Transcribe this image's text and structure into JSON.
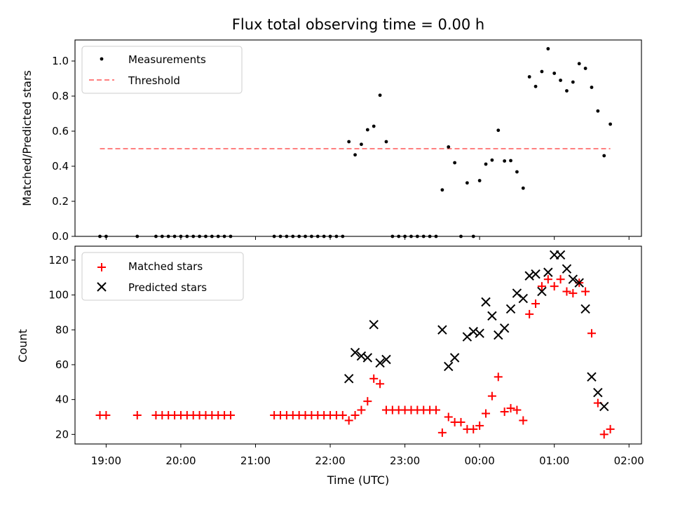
{
  "chart_data": [
    {
      "type": "scatter",
      "title": "Flux total observing time = 0.00 h",
      "xlabel": "",
      "ylabel": "Matched/Predicted stars",
      "xlim": [
        "18:35",
        "02:10"
      ],
      "ylim": [
        0,
        1.12
      ],
      "yticks": [
        "0.0",
        "0.2",
        "0.4",
        "0.6",
        "0.8",
        "1.0"
      ],
      "legend": {
        "position": "top-left",
        "entries": [
          "Measurements",
          "Threshold"
        ]
      },
      "threshold": {
        "name": "Threshold",
        "value": 0.5,
        "x_start": "18:55",
        "x_end": "01:45",
        "color": "#ff8080"
      },
      "series": [
        {
          "name": "Measurements",
          "marker": "dot",
          "color": "#000000",
          "points": [
            [
              "18:55",
              0
            ],
            [
              "19:00",
              0
            ],
            [
              "19:25",
              0
            ],
            [
              "19:40",
              0
            ],
            [
              "19:45",
              0
            ],
            [
              "19:50",
              0
            ],
            [
              "19:55",
              0
            ],
            [
              "20:00",
              0
            ],
            [
              "20:05",
              0
            ],
            [
              "20:10",
              0
            ],
            [
              "20:15",
              0
            ],
            [
              "20:20",
              0
            ],
            [
              "20:25",
              0
            ],
            [
              "20:30",
              0
            ],
            [
              "20:35",
              0
            ],
            [
              "20:40",
              0
            ],
            [
              "21:15",
              0
            ],
            [
              "21:20",
              0
            ],
            [
              "21:25",
              0
            ],
            [
              "21:30",
              0
            ],
            [
              "21:35",
              0
            ],
            [
              "21:40",
              0
            ],
            [
              "21:45",
              0
            ],
            [
              "21:50",
              0
            ],
            [
              "21:55",
              0
            ],
            [
              "22:00",
              0
            ],
            [
              "22:05",
              0
            ],
            [
              "22:10",
              0
            ],
            [
              "22:15",
              0.54
            ],
            [
              "22:20",
              0.465
            ],
            [
              "22:25",
              0.525
            ],
            [
              "22:30",
              0.608
            ],
            [
              "22:35",
              0.628
            ],
            [
              "22:40",
              0.805
            ],
            [
              "22:45",
              0.54
            ],
            [
              "22:50",
              0
            ],
            [
              "22:55",
              0
            ],
            [
              "23:00",
              0
            ],
            [
              "23:05",
              0
            ],
            [
              "23:10",
              0
            ],
            [
              "23:15",
              0
            ],
            [
              "23:20",
              0
            ],
            [
              "23:25",
              0
            ],
            [
              "23:30",
              0.265
            ],
            [
              "23:35",
              0.51
            ],
            [
              "23:40",
              0.42
            ],
            [
              "23:45",
              0
            ],
            [
              "23:50",
              0.305
            ],
            [
              "23:55",
              0
            ],
            [
              "00:00",
              0.318
            ],
            [
              "00:05",
              0.412
            ],
            [
              "00:10",
              0.435
            ],
            [
              "00:15",
              0.605
            ],
            [
              "00:20",
              0.43
            ],
            [
              "00:25",
              0.432
            ],
            [
              "00:30",
              0.368
            ],
            [
              "00:35",
              0.275
            ],
            [
              "00:40",
              0.91
            ],
            [
              "00:45",
              0.855
            ],
            [
              "00:50",
              0.94
            ],
            [
              "00:55",
              1.07
            ],
            [
              "01:00",
              0.93
            ],
            [
              "01:05",
              0.89
            ],
            [
              "01:10",
              0.83
            ],
            [
              "01:15",
              0.88
            ],
            [
              "01:20",
              0.985
            ],
            [
              "01:25",
              0.958
            ],
            [
              "01:30",
              0.85
            ],
            [
              "01:35",
              0.715
            ],
            [
              "01:40",
              0.46
            ],
            [
              "01:45",
              0.64
            ]
          ]
        }
      ]
    },
    {
      "type": "scatter",
      "title": "",
      "xlabel": "Time (UTC)",
      "ylabel": "Count",
      "xlim": [
        "18:35",
        "02:10"
      ],
      "ylim": [
        14.5,
        128
      ],
      "xticks": [
        "19:00",
        "20:00",
        "21:00",
        "22:00",
        "23:00",
        "00:00",
        "01:00",
        "02:00"
      ],
      "yticks": [
        "20",
        "40",
        "60",
        "80",
        "100",
        "120"
      ],
      "legend": {
        "position": "top-left",
        "entries": [
          "Matched stars",
          "Predicted stars"
        ]
      },
      "series": [
        {
          "name": "Matched stars",
          "marker": "plus",
          "color": "#ff0000",
          "points": [
            [
              "18:55",
              31
            ],
            [
              "19:00",
              31
            ],
            [
              "19:25",
              31
            ],
            [
              "19:40",
              31
            ],
            [
              "19:45",
              31
            ],
            [
              "19:50",
              31
            ],
            [
              "19:55",
              31
            ],
            [
              "20:00",
              31
            ],
            [
              "20:05",
              31
            ],
            [
              "20:10",
              31
            ],
            [
              "20:15",
              31
            ],
            [
              "20:20",
              31
            ],
            [
              "20:25",
              31
            ],
            [
              "20:30",
              31
            ],
            [
              "20:35",
              31
            ],
            [
              "20:40",
              31
            ],
            [
              "21:15",
              31
            ],
            [
              "21:20",
              31
            ],
            [
              "21:25",
              31
            ],
            [
              "21:30",
              31
            ],
            [
              "21:35",
              31
            ],
            [
              "21:40",
              31
            ],
            [
              "21:45",
              31
            ],
            [
              "21:50",
              31
            ],
            [
              "21:55",
              31
            ],
            [
              "22:00",
              31
            ],
            [
              "22:05",
              31
            ],
            [
              "22:10",
              31
            ],
            [
              "22:15",
              28
            ],
            [
              "22:20",
              31
            ],
            [
              "22:25",
              34
            ],
            [
              "22:30",
              39
            ],
            [
              "22:35",
              52
            ],
            [
              "22:40",
              49
            ],
            [
              "22:45",
              34
            ],
            [
              "22:50",
              34
            ],
            [
              "22:55",
              34
            ],
            [
              "23:00",
              34
            ],
            [
              "23:05",
              34
            ],
            [
              "23:10",
              34
            ],
            [
              "23:15",
              34
            ],
            [
              "23:20",
              34
            ],
            [
              "23:25",
              34
            ],
            [
              "23:30",
              21
            ],
            [
              "23:35",
              30
            ],
            [
              "23:40",
              27
            ],
            [
              "23:45",
              27
            ],
            [
              "23:50",
              23
            ],
            [
              "23:55",
              23
            ],
            [
              "00:00",
              25
            ],
            [
              "00:05",
              32
            ],
            [
              "00:10",
              42
            ],
            [
              "00:15",
              53
            ],
            [
              "00:20",
              33
            ],
            [
              "00:25",
              35
            ],
            [
              "00:30",
              34
            ],
            [
              "00:35",
              28
            ],
            [
              "00:40",
              89
            ],
            [
              "00:45",
              95
            ],
            [
              "00:50",
              105
            ],
            [
              "00:55",
              109
            ],
            [
              "01:00",
              105
            ],
            [
              "01:05",
              109
            ],
            [
              "01:10",
              102
            ],
            [
              "01:15",
              101
            ],
            [
              "01:20",
              107
            ],
            [
              "01:25",
              102
            ],
            [
              "01:30",
              78
            ],
            [
              "01:35",
              38
            ],
            [
              "01:40",
              20
            ],
            [
              "01:45",
              23
            ]
          ]
        },
        {
          "name": "Predicted stars",
          "marker": "x",
          "color": "#000000",
          "points": [
            [
              "22:15",
              52
            ],
            [
              "22:20",
              67
            ],
            [
              "22:25",
              65
            ],
            [
              "22:30",
              64
            ],
            [
              "22:35",
              83
            ],
            [
              "22:40",
              61
            ],
            [
              "22:45",
              63
            ],
            [
              "23:30",
              80
            ],
            [
              "23:35",
              59
            ],
            [
              "23:40",
              64
            ],
            [
              "23:50",
              76
            ],
            [
              "23:55",
              79
            ],
            [
              "00:00",
              78
            ],
            [
              "00:05",
              96
            ],
            [
              "00:10",
              88
            ],
            [
              "00:15",
              77
            ],
            [
              "00:20",
              81
            ],
            [
              "00:25",
              92
            ],
            [
              "00:30",
              101
            ],
            [
              "00:35",
              98
            ],
            [
              "00:40",
              111
            ],
            [
              "00:45",
              112
            ],
            [
              "00:50",
              102
            ],
            [
              "00:55",
              113
            ],
            [
              "01:00",
              123
            ],
            [
              "01:05",
              123
            ],
            [
              "01:10",
              115
            ],
            [
              "01:15",
              109
            ],
            [
              "01:20",
              107
            ],
            [
              "01:25",
              92
            ],
            [
              "01:30",
              53
            ],
            [
              "01:35",
              44
            ],
            [
              "01:40",
              36
            ]
          ]
        }
      ]
    }
  ]
}
